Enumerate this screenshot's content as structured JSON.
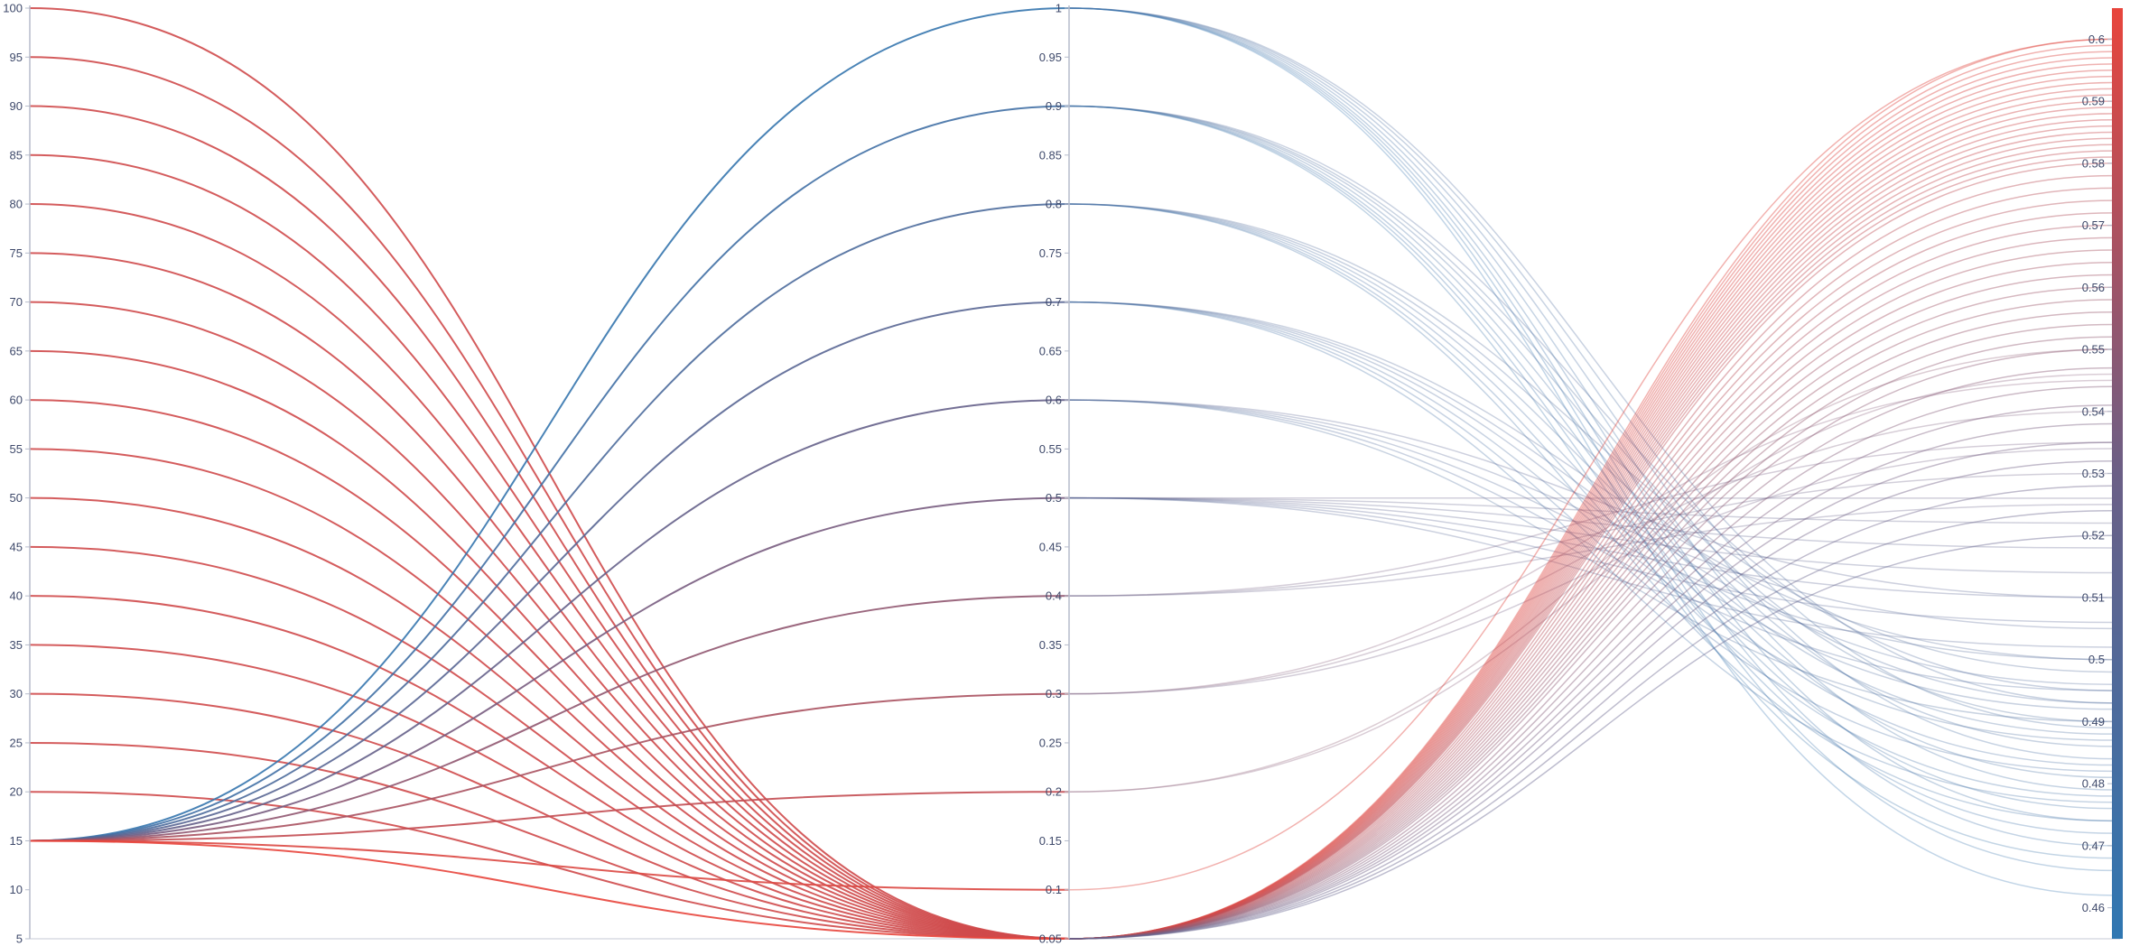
{
  "chart_data": {
    "type": "parallel-coordinates",
    "axes": [
      {
        "ticks": [
          5,
          10,
          15,
          20,
          25,
          30,
          35,
          40,
          45,
          50,
          55,
          60,
          65,
          70,
          75,
          80,
          85,
          90,
          95,
          100
        ],
        "tick_labels": [
          "5",
          "10",
          "15",
          "20",
          "25",
          "30",
          "35",
          "40",
          "45",
          "50",
          "55",
          "60",
          "65",
          "70",
          "75",
          "80",
          "85",
          "90",
          "95",
          "100"
        ],
        "range": [
          5,
          100
        ]
      },
      {
        "ticks": [
          0.05,
          0.1,
          0.15,
          0.2,
          0.25,
          0.3,
          0.35,
          0.4,
          0.45,
          0.5,
          0.55,
          0.6,
          0.65,
          0.7,
          0.75,
          0.8,
          0.85,
          0.9,
          0.95,
          1
        ],
        "tick_labels": [
          "0.05",
          "0.1",
          "0.15",
          "0.2",
          "0.25",
          "0.3",
          "0.35",
          "0.4",
          "0.45",
          "0.5",
          "0.55",
          "0.6",
          "0.65",
          "0.7",
          "0.75",
          "0.8",
          "0.85",
          "0.9",
          "0.95",
          "1"
        ],
        "range": [
          0.05,
          1
        ]
      },
      {
        "ticks": [
          0.46,
          0.47,
          0.48,
          0.49,
          0.5,
          0.51,
          0.52,
          0.53,
          0.54,
          0.55,
          0.56,
          0.57,
          0.58,
          0.59,
          0.6
        ],
        "tick_labels": [
          "0.46",
          "0.47",
          "0.48",
          "0.49",
          "0.5",
          "0.51",
          "0.52",
          "0.53",
          "0.54",
          "0.55",
          "0.56",
          "0.57",
          "0.58",
          "0.59",
          "0.6"
        ],
        "range": [
          0.455,
          0.605
        ]
      }
    ],
    "color_scale": {
      "low": "#2f77b2",
      "mid": "#6b5f86",
      "high": "#e8453c",
      "domain": [
        0.455,
        0.605
      ]
    },
    "bold_lines": [
      {
        "a": 100,
        "b": 0.05
      },
      {
        "a": 95,
        "b": 0.05
      },
      {
        "a": 90,
        "b": 0.05
      },
      {
        "a": 85,
        "b": 0.05
      },
      {
        "a": 80,
        "b": 0.05
      },
      {
        "a": 75,
        "b": 0.05
      },
      {
        "a": 70,
        "b": 0.05
      },
      {
        "a": 65,
        "b": 0.05
      },
      {
        "a": 60,
        "b": 0.05
      },
      {
        "a": 55,
        "b": 0.05
      },
      {
        "a": 50,
        "b": 0.05
      },
      {
        "a": 45,
        "b": 0.05
      },
      {
        "a": 40,
        "b": 0.05
      },
      {
        "a": 35,
        "b": 0.05
      },
      {
        "a": 30,
        "b": 0.05
      },
      {
        "a": 25,
        "b": 0.05
      },
      {
        "a": 20,
        "b": 0.05
      },
      {
        "a": 15,
        "b": 1.0
      },
      {
        "a": 15,
        "b": 0.9
      },
      {
        "a": 15,
        "b": 0.8
      },
      {
        "a": 15,
        "b": 0.7
      },
      {
        "a": 15,
        "b": 0.6
      },
      {
        "a": 15,
        "b": 0.5
      },
      {
        "a": 15,
        "b": 0.4
      },
      {
        "a": 15,
        "b": 0.3
      },
      {
        "a": 15,
        "b": 0.2
      },
      {
        "a": 15,
        "b": 0.1
      },
      {
        "a": 15,
        "b": 0.05
      }
    ],
    "records": [
      {
        "b": 1.0,
        "c": 0.493
      },
      {
        "b": 1.0,
        "c": 0.489
      },
      {
        "b": 1.0,
        "c": 0.484
      },
      {
        "b": 1.0,
        "c": 0.479
      },
      {
        "b": 1.0,
        "c": 0.474
      },
      {
        "b": 1.0,
        "c": 0.47
      },
      {
        "b": 1.0,
        "c": 0.466
      },
      {
        "b": 1.0,
        "c": 0.462
      },
      {
        "b": 0.9,
        "c": 0.495
      },
      {
        "b": 0.9,
        "c": 0.49
      },
      {
        "b": 0.9,
        "c": 0.486
      },
      {
        "b": 0.9,
        "c": 0.481
      },
      {
        "b": 0.9,
        "c": 0.476
      },
      {
        "b": 0.9,
        "c": 0.472
      },
      {
        "b": 0.9,
        "c": 0.468
      },
      {
        "b": 0.8,
        "c": 0.498
      },
      {
        "b": 0.8,
        "c": 0.493
      },
      {
        "b": 0.8,
        "c": 0.488
      },
      {
        "b": 0.8,
        "c": 0.483
      },
      {
        "b": 0.8,
        "c": 0.478
      },
      {
        "b": 0.8,
        "c": 0.474
      },
      {
        "b": 0.7,
        "c": 0.5
      },
      {
        "b": 0.7,
        "c": 0.496
      },
      {
        "b": 0.7,
        "c": 0.492
      },
      {
        "b": 0.7,
        "c": 0.487
      },
      {
        "b": 0.7,
        "c": 0.482
      },
      {
        "b": 0.7,
        "c": 0.477
      },
      {
        "b": 0.6,
        "c": 0.51
      },
      {
        "b": 0.6,
        "c": 0.505
      },
      {
        "b": 0.6,
        "c": 0.5
      },
      {
        "b": 0.6,
        "c": 0.495
      },
      {
        "b": 0.6,
        "c": 0.49
      },
      {
        "b": 0.5,
        "c": 0.526
      },
      {
        "b": 0.5,
        "c": 0.522
      },
      {
        "b": 0.5,
        "c": 0.518
      },
      {
        "b": 0.5,
        "c": 0.514
      },
      {
        "b": 0.5,
        "c": 0.51
      },
      {
        "b": 0.5,
        "c": 0.506
      },
      {
        "b": 0.5,
        "c": 0.502
      },
      {
        "b": 0.4,
        "c": 0.535
      },
      {
        "b": 0.4,
        "c": 0.53
      },
      {
        "b": 0.4,
        "c": 0.525
      },
      {
        "b": 0.3,
        "c": 0.545
      },
      {
        "b": 0.3,
        "c": 0.54
      },
      {
        "b": 0.3,
        "c": 0.534
      },
      {
        "b": 0.2,
        "c": 0.55
      },
      {
        "b": 0.2,
        "c": 0.546
      },
      {
        "b": 0.1,
        "c": 0.6
      },
      {
        "b": 0.05,
        "c": 0.6
      },
      {
        "b": 0.05,
        "c": 0.599
      },
      {
        "b": 0.05,
        "c": 0.598
      },
      {
        "b": 0.05,
        "c": 0.597
      },
      {
        "b": 0.05,
        "c": 0.596
      },
      {
        "b": 0.05,
        "c": 0.595
      },
      {
        "b": 0.05,
        "c": 0.594
      },
      {
        "b": 0.05,
        "c": 0.593
      },
      {
        "b": 0.05,
        "c": 0.592
      },
      {
        "b": 0.05,
        "c": 0.591
      },
      {
        "b": 0.05,
        "c": 0.59
      },
      {
        "b": 0.05,
        "c": 0.589
      },
      {
        "b": 0.05,
        "c": 0.588
      },
      {
        "b": 0.05,
        "c": 0.587
      },
      {
        "b": 0.05,
        "c": 0.586
      },
      {
        "b": 0.05,
        "c": 0.585
      },
      {
        "b": 0.05,
        "c": 0.584
      },
      {
        "b": 0.05,
        "c": 0.583
      },
      {
        "b": 0.05,
        "c": 0.582
      },
      {
        "b": 0.05,
        "c": 0.581
      },
      {
        "b": 0.05,
        "c": 0.58
      },
      {
        "b": 0.05,
        "c": 0.578
      },
      {
        "b": 0.05,
        "c": 0.576
      },
      {
        "b": 0.05,
        "c": 0.574
      },
      {
        "b": 0.05,
        "c": 0.572
      },
      {
        "b": 0.05,
        "c": 0.57
      },
      {
        "b": 0.05,
        "c": 0.568
      },
      {
        "b": 0.05,
        "c": 0.566
      },
      {
        "b": 0.05,
        "c": 0.564
      },
      {
        "b": 0.05,
        "c": 0.562
      },
      {
        "b": 0.05,
        "c": 0.56
      },
      {
        "b": 0.05,
        "c": 0.558
      },
      {
        "b": 0.05,
        "c": 0.556
      },
      {
        "b": 0.05,
        "c": 0.554
      },
      {
        "b": 0.05,
        "c": 0.552
      },
      {
        "b": 0.05,
        "c": 0.55
      },
      {
        "b": 0.05,
        "c": 0.547
      },
      {
        "b": 0.05,
        "c": 0.544
      },
      {
        "b": 0.05,
        "c": 0.541
      },
      {
        "b": 0.05,
        "c": 0.538
      },
      {
        "b": 0.05,
        "c": 0.535
      },
      {
        "b": 0.05,
        "c": 0.532
      },
      {
        "b": 0.05,
        "c": 0.528
      },
      {
        "b": 0.05,
        "c": 0.524
      },
      {
        "b": 0.05,
        "c": 0.52
      }
    ]
  }
}
